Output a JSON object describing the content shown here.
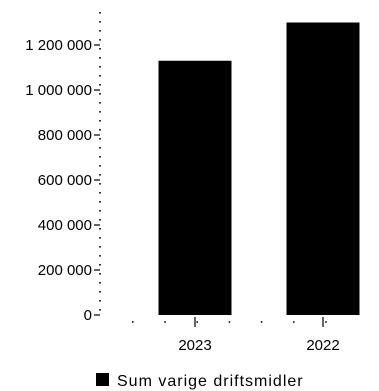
{
  "chart_data": {
    "type": "bar",
    "categories": [
      "2023",
      "2022"
    ],
    "series": [
      {
        "name": "Sum varige driftsmidler",
        "values": [
          1130000,
          1300000
        ],
        "color": "#000000"
      }
    ],
    "y_ticks": [
      "0",
      "200 000",
      "400 000",
      "600 000",
      "800 000",
      "1 000 000",
      "1 200 000"
    ],
    "ylim": [
      0,
      1350000
    ],
    "grid": false,
    "legend_position": "bottom"
  }
}
